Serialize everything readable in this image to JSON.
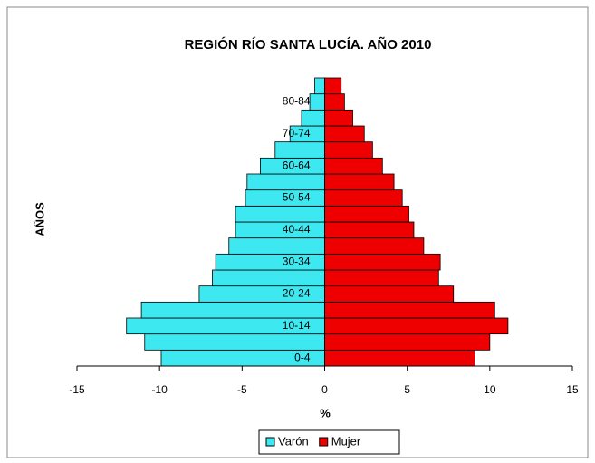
{
  "chart_data": {
    "type": "pyramid",
    "title": "REGIÓN RÍO SANTA LUCÍA. AÑO 2010",
    "y_label": "AÑOS",
    "x_label": "%",
    "categories": [
      "0-4",
      null,
      "10-14",
      null,
      "20-24",
      null,
      "30-34",
      null,
      "40-44",
      null,
      "50-54",
      null,
      "60-64",
      null,
      "70-74",
      null,
      "80-84",
      null
    ],
    "series": [
      {
        "name": "Varón",
        "color": "#3ee8f0",
        "values": [
          -9.9,
          -10.9,
          -12.0,
          -11.1,
          -7.6,
          -6.8,
          -6.6,
          -5.8,
          -5.4,
          -5.4,
          -4.8,
          -4.7,
          -3.9,
          -3.0,
          -2.1,
          -1.4,
          -0.9,
          -0.6
        ]
      },
      {
        "name": "Mujer",
        "color": "#ee0000",
        "values": [
          9.1,
          10.0,
          11.1,
          10.3,
          7.8,
          6.9,
          7.0,
          6.0,
          5.4,
          5.1,
          4.7,
          4.2,
          3.5,
          2.9,
          2.4,
          1.7,
          1.2,
          1.0
        ]
      }
    ],
    "xlim": [
      -15,
      15
    ],
    "xticks": [
      -15,
      -10,
      -5,
      0,
      5,
      10,
      15
    ],
    "legend": "bottom"
  }
}
